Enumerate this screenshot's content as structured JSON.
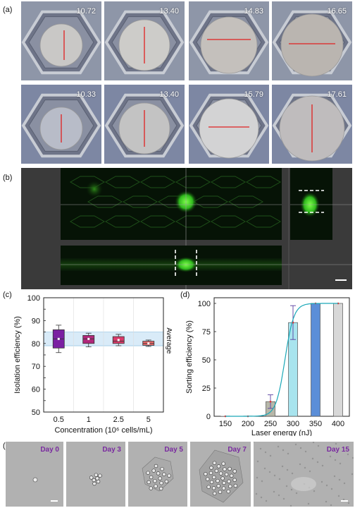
{
  "panel_labels": {
    "a": "(a)",
    "b": "(b)",
    "c": "(c)",
    "d": "(d)",
    "e": "(e)"
  },
  "panel_a": {
    "values": [
      "10.72",
      "13.40",
      "14.83",
      "16.65",
      "10.33",
      "13.40",
      "15.79",
      "17.61"
    ]
  },
  "panel_e": {
    "days": [
      "Day 0",
      "Day 3",
      "Day 5",
      "Day 7",
      "Day 15"
    ]
  },
  "chart_data": [
    {
      "type": "bar",
      "title": "",
      "xlabel": "Concentration (10⁶ cells/mL)",
      "ylabel": "Isolation efficiency (%)",
      "categories": [
        "0.5",
        "1",
        "2.5",
        "5"
      ],
      "ylim": [
        50,
        100
      ],
      "yticks": [
        50,
        55,
        60,
        65,
        70,
        75,
        80,
        85,
        90,
        95,
        100
      ],
      "boxes": [
        {
          "q1": 78,
          "median": 82,
          "q3": 86,
          "min": 76,
          "max": 88,
          "mean": 82,
          "color": "#7a1fa2"
        },
        {
          "q1": 80,
          "median": 82,
          "q3": 83.5,
          "min": 78.5,
          "max": 84.5,
          "mean": 82,
          "color": "#b0277a"
        },
        {
          "q1": 80,
          "median": 81,
          "q3": 83,
          "min": 79,
          "max": 84,
          "mean": 81.5,
          "color": "#d83a6a"
        },
        {
          "q1": 79.2,
          "median": 80,
          "q3": 81,
          "min": 78.7,
          "max": 81.5,
          "mean": 80,
          "color": "#e8686a"
        }
      ],
      "average_band": [
        79,
        85
      ],
      "average_label": "Average"
    },
    {
      "type": "bar",
      "title": "",
      "xlabel": "Laser energy (nJ)",
      "ylabel": "Sorting efficiency (%)",
      "categories": [
        "150",
        "200",
        "250",
        "300",
        "350",
        "400"
      ],
      "values": [
        0,
        0,
        13,
        83,
        100,
        100
      ],
      "errors": [
        0,
        0,
        6,
        15,
        0,
        0
      ],
      "ylim": [
        0,
        105
      ],
      "yticks": [
        0,
        25,
        50,
        75,
        100
      ],
      "colors": [
        "#cccccc",
        "#cccccc",
        "#b7b7a8",
        "#a8e4ee",
        "#5b8ed8",
        "#d8d8d8"
      ],
      "fit_color": "#1aa8b8"
    }
  ]
}
